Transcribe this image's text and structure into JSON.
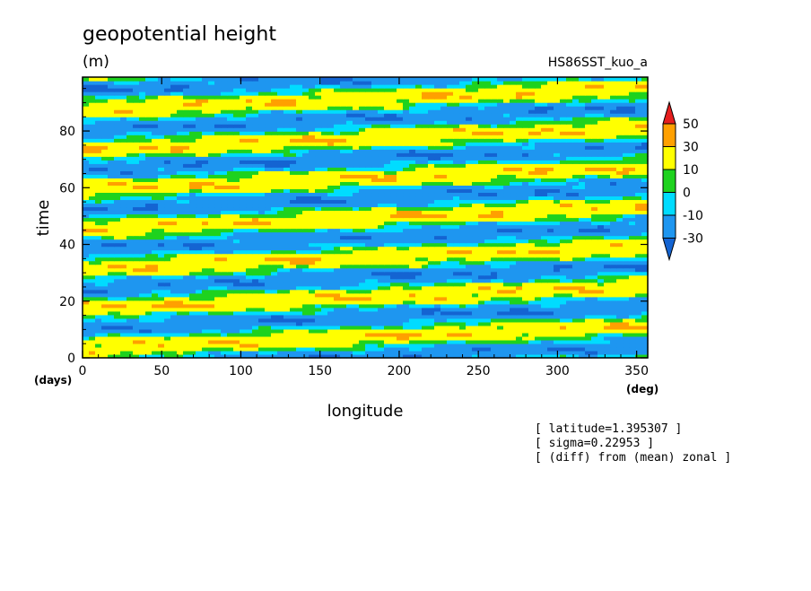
{
  "chart_data": {
    "type": "heatmap",
    "title": "geopotential height",
    "units": "(m)",
    "dataset": "HS86SST_kuo_a",
    "xlabel": "longitude",
    "xunits": "(deg)",
    "ylabel": "time",
    "yunits": "(days)",
    "xlim": [
      0,
      357
    ],
    "ylim": [
      0,
      99
    ],
    "xticks": [
      0,
      50,
      100,
      150,
      200,
      250,
      300,
      350
    ],
    "yticks": [
      0,
      20,
      40,
      60,
      80
    ],
    "colorbar": {
      "levels": [
        "-30",
        "-10",
        "0",
        "10",
        "30",
        "50"
      ],
      "colors": [
        "#1464d2",
        "#1e96f0",
        "#00dcff",
        "#1ed21e",
        "#ffff00",
        "#ffa000",
        "#e61e1e"
      ],
      "extend": "both"
    },
    "pattern": {
      "description_values": "diagonal eastward-propagating bands of alternating positive and negative anomalies",
      "band_period_days": 14,
      "phase_drift_days_per_360deg": 8,
      "amplitude_m": 32
    },
    "annotations": [
      "[ latitude=1.395307 ]",
      "[ sigma=0.22953 ]",
      "[ (diff) from (mean) zonal ]"
    ]
  }
}
